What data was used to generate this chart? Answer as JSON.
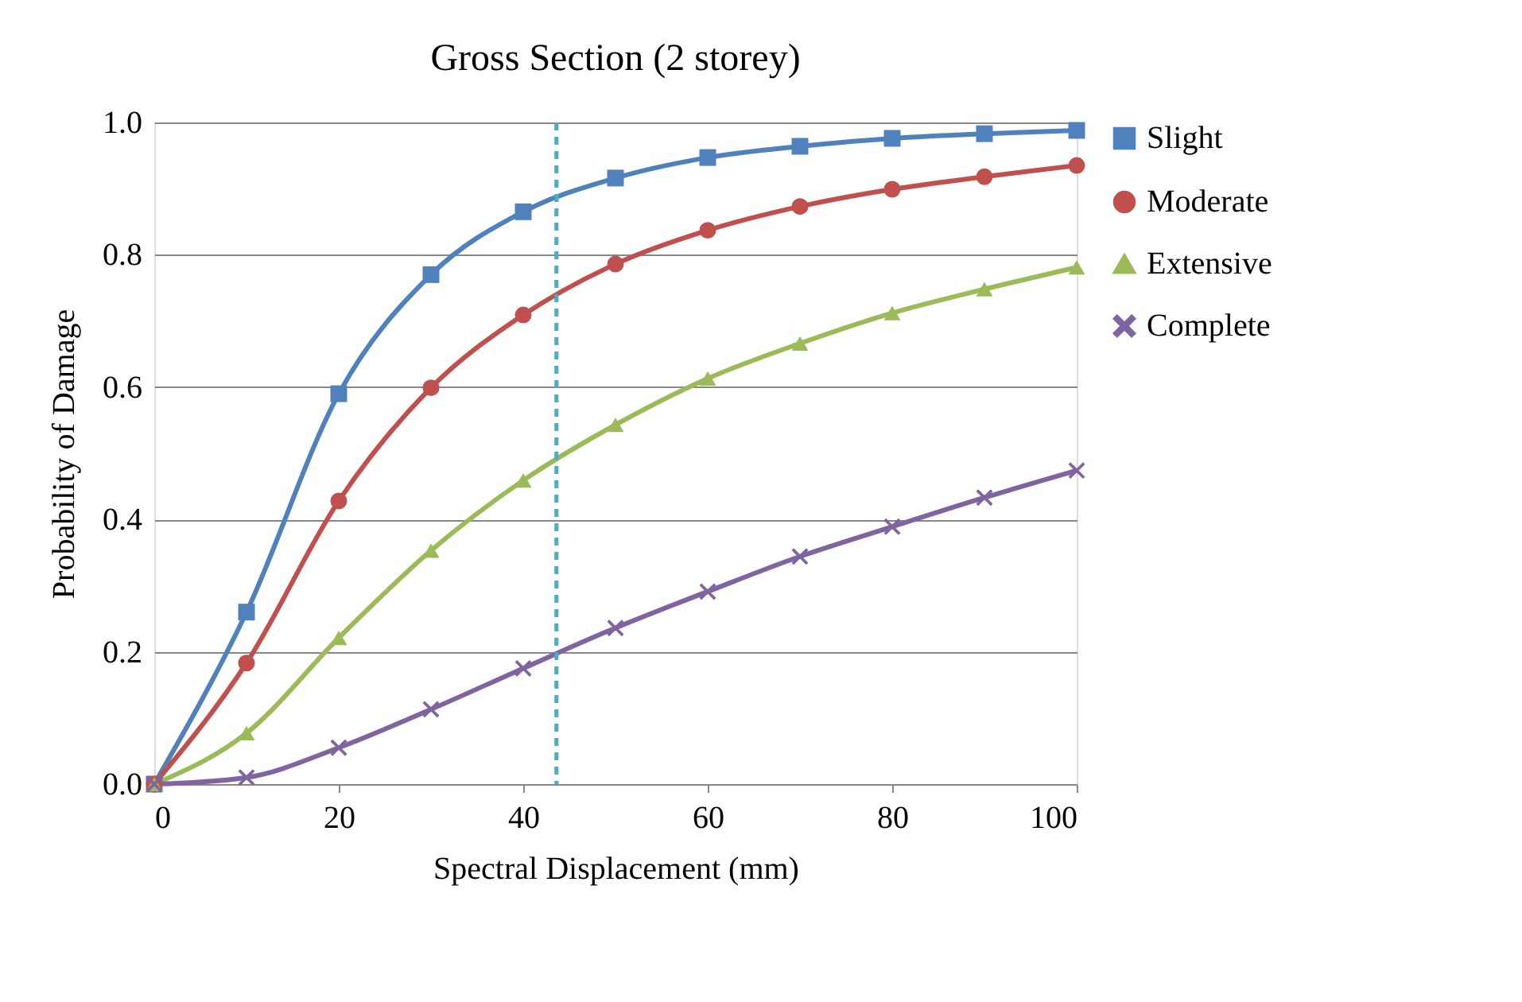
{
  "chart_data": {
    "type": "line",
    "title": "Gross Section (2 storey)",
    "xlabel": "Spectral Displacement (mm)",
    "ylabel": "Probability of Damage",
    "x": [
      0,
      10,
      20,
      30,
      40,
      50,
      60,
      70,
      80,
      90,
      100
    ],
    "series": [
      {
        "name": "Slight",
        "color": "#4f81bd",
        "marker": "square",
        "values": [
          0,
          0.26,
          0.59,
          0.77,
          0.865,
          0.916,
          0.947,
          0.964,
          0.976,
          0.983,
          0.988
        ]
      },
      {
        "name": "Moderate",
        "color": "#c0504d",
        "marker": "circle",
        "values": [
          0,
          0.183,
          0.428,
          0.599,
          0.709,
          0.786,
          0.837,
          0.873,
          0.899,
          0.918,
          0.935
        ]
      },
      {
        "name": "Extensive",
        "color": "#9bbb59",
        "marker": "triangle",
        "values": [
          0,
          0.077,
          0.221,
          0.353,
          0.459,
          0.543,
          0.613,
          0.666,
          0.712,
          0.748,
          0.781
        ]
      },
      {
        "name": "Complete",
        "color": "#8064a2",
        "marker": "cross",
        "values": [
          0,
          0.01,
          0.055,
          0.113,
          0.175,
          0.236,
          0.291,
          0.344,
          0.389,
          0.433,
          0.474
        ]
      }
    ],
    "xlim": [
      0,
      100
    ],
    "xticks": [
      0,
      20,
      40,
      60,
      80,
      100
    ],
    "ylim": [
      0,
      1.0
    ],
    "yticks": [
      {
        "value": 0,
        "label": "0.0"
      },
      {
        "value": 0.2,
        "label": "0.2"
      },
      {
        "value": 0.4,
        "label": "0.4"
      },
      {
        "value": 0.6,
        "label": "0.6"
      },
      {
        "value": 0.8,
        "label": "0.8"
      },
      {
        "value": 1.0,
        "label": "1.0"
      }
    ],
    "ref_lines": [
      {
        "axis": "x",
        "value": 43.6,
        "label": null,
        "color": "#4bacc6",
        "line_style": "dashed"
      }
    ],
    "grid": "y",
    "legend": "right",
    "line_style": "solid"
  }
}
